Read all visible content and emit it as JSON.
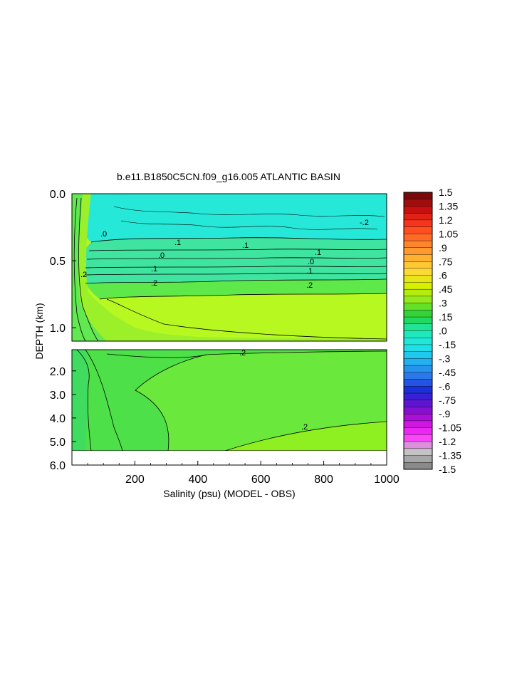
{
  "chart_data": {
    "type": "heatmap",
    "title": "b.e11.B1850C5CN.f09_g16.005 ATLANTIC BASIN",
    "xlabel": "Salinity (psu) (MODEL - OBS)",
    "ylabel": "DEPTH (km)",
    "xlim": [
      0,
      1000
    ],
    "xticks": [
      "200",
      "400",
      "600",
      "800",
      "1000"
    ],
    "x_tick_values": [
      200,
      400,
      600,
      800,
      1000
    ],
    "upper_panel": {
      "ylim": [
        0.0,
        1.1
      ],
      "yticks": [
        "0.0",
        "0.5",
        "1.0"
      ],
      "y_tick_values": [
        0.0,
        0.5,
        1.0
      ]
    },
    "lower_panel": {
      "ylim": [
        1.1,
        6.0
      ],
      "yticks": [
        "2.0",
        "3.0",
        "4.0",
        "5.0",
        "6.0"
      ],
      "y_tick_values": [
        2.0,
        3.0,
        4.0,
        5.0,
        6.0
      ],
      "data_bottom_depth": 5.4
    },
    "colorbar": {
      "labels": [
        "1.5",
        "1.35",
        "1.2",
        "1.05",
        ".9",
        ".75",
        ".6",
        ".45",
        ".3",
        ".15",
        ".0",
        "-.15",
        "-.3",
        "-.45",
        "-.6",
        "-.75",
        "-.9",
        "-1.05",
        "-1.2",
        "-1.35",
        "-1.5"
      ],
      "label_values": [
        1.5,
        1.35,
        1.2,
        1.05,
        0.9,
        0.75,
        0.6,
        0.45,
        0.3,
        0.15,
        0.0,
        -0.15,
        -0.3,
        -0.45,
        -0.6,
        -0.75,
        -0.9,
        -1.05,
        -1.2,
        -1.35,
        -1.5
      ],
      "range": [
        -1.5,
        1.5
      ],
      "colors": [
        "#7a0a0a",
        "#cc1010",
        "#ff3b1e",
        "#ff7a2a",
        "#ffaa30",
        "#ffd83a",
        "#d6f000",
        "#8ee81e",
        "#22d23a",
        "#20e8b0",
        "#1ee8e8",
        "#22b4f0",
        "#2a78ea",
        "#1a2ad8",
        "#6a10d0",
        "#c010d8",
        "#ff30ff",
        "#c8c8c8",
        "#8a8a8a"
      ]
    },
    "contour_labels": [
      ".0",
      ".1",
      ".2",
      ".1",
      ".0",
      ".1",
      ".1",
      ".2",
      ".2",
      ".0",
      ".1",
      ".2",
      "-.2",
      ".2"
    ],
    "field_description_colors": {
      "surface_band": "#26e8c4",
      "upper_mid": "#6ee85a",
      "core": "#c8f81a",
      "deep": "#4ee048",
      "bottom": "#8ef020"
    }
  }
}
